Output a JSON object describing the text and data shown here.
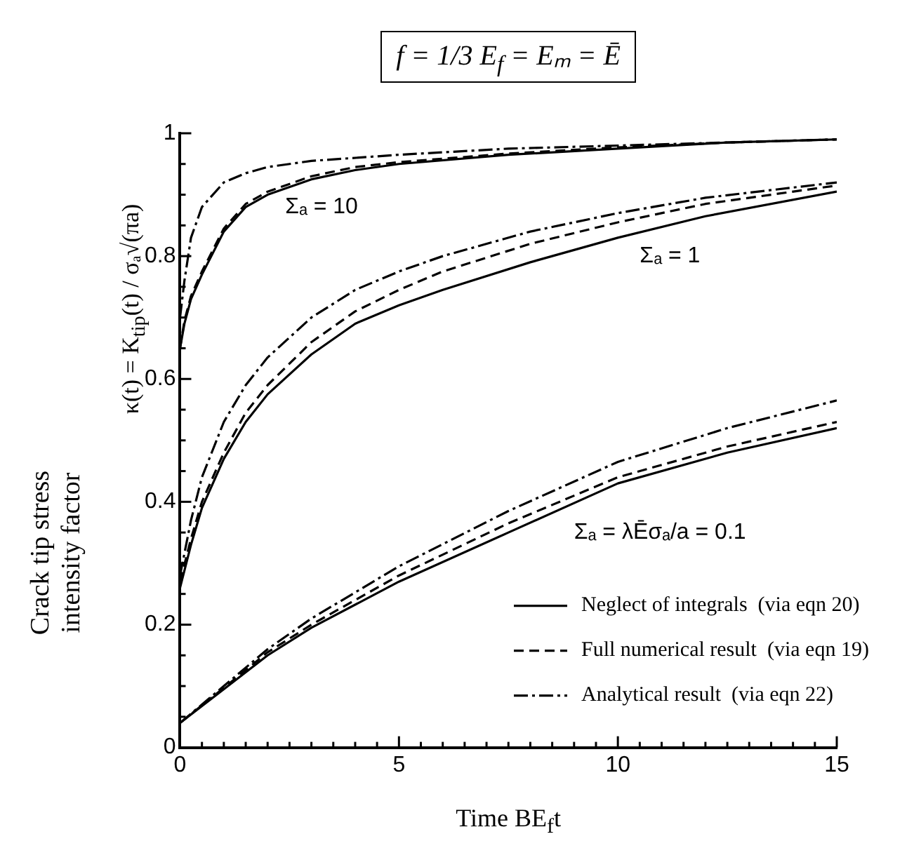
{
  "chart_data": {
    "type": "line",
    "title": "f = 1/3 E$_{f}$ = Eₘ = Ē",
    "xlabel": "Time BE$_{f}$t",
    "ylabel": "Crack tip stress\nintensity factor",
    "annotations": [
      "κ(t) = K$_{tip}$(t) / σₐ√(πa)",
      "Σₐ = 10",
      "Σₐ = 1",
      "Σₐ = λĒσₐ/a = 0.1"
    ],
    "xlim": [
      0,
      15
    ],
    "ylim": [
      0,
      1
    ],
    "xticks": [
      0,
      {
        "value": 0.5,
        "label": null
      },
      {
        "value": 1,
        "label": null
      },
      {
        "value": 1.5,
        "label": null
      },
      {
        "value": 2,
        "label": null
      },
      {
        "value": 2.5,
        "label": null
      },
      {
        "value": 3,
        "label": null
      },
      {
        "value": 3.5,
        "label": null
      },
      {
        "value": 4,
        "label": null
      },
      {
        "value": 4.5,
        "label": null
      },
      5,
      {
        "value": 5.5,
        "label": null
      },
      {
        "value": 6,
        "label": null
      },
      {
        "value": 6.5,
        "label": null
      },
      {
        "value": 7,
        "label": null
      },
      {
        "value": 7.5,
        "label": null
      },
      {
        "value": 8,
        "label": null
      },
      {
        "value": 8.5,
        "label": null
      },
      {
        "value": 9,
        "label": null
      },
      {
        "value": 9.5,
        "label": null
      },
      10,
      {
        "value": 10.5,
        "label": null
      },
      {
        "value": 11,
        "label": null
      },
      {
        "value": 11.5,
        "label": null
      },
      {
        "value": 12,
        "label": null
      },
      {
        "value": 12.5,
        "label": null
      },
      {
        "value": 13,
        "label": null
      },
      {
        "value": 13.5,
        "label": null
      },
      {
        "value": 14,
        "label": null
      },
      {
        "value": 14.5,
        "label": null
      },
      15
    ],
    "yticks": [
      0,
      {
        "value": 0.05,
        "label": null
      },
      {
        "value": 0.1,
        "label": null
      },
      {
        "value": 0.15,
        "label": null
      },
      0.2,
      {
        "value": 0.25,
        "label": null
      },
      {
        "value": 0.3,
        "label": null
      },
      {
        "value": 0.35,
        "label": null
      },
      0.4,
      {
        "value": 0.45,
        "label": null
      },
      {
        "value": 0.5,
        "label": null
      },
      {
        "value": 0.55,
        "label": null
      },
      0.6,
      {
        "value": 0.65,
        "label": null
      },
      {
        "value": 0.7,
        "label": null
      },
      {
        "value": 0.75,
        "label": null
      },
      0.8,
      {
        "value": 0.85,
        "label": null
      },
      {
        "value": 0.9,
        "label": null
      },
      {
        "value": 0.95,
        "label": null
      },
      1
    ],
    "legend": "bottom right",
    "marker": "none",
    "series": [
      {
        "name": "Neglect of integrals  (via eqn 20)",
        "color": "#000000",
        "line_style": "solid",
        "x": [
          0,
          0.1,
          0.25,
          0.5,
          1,
          1.5,
          2,
          3,
          4,
          5,
          7.5,
          10,
          12.5,
          15
        ],
        "values": [
          0.65,
          0.69,
          0.73,
          0.77,
          0.84,
          0.88,
          0.9,
          0.925,
          0.94,
          0.95,
          0.965,
          0.975,
          0.985,
          0.99
        ]
      },
      {
        "name": "Full numerical result  (via eqn 19)",
        "color": "#000000",
        "line_style": "dashed",
        "x": [
          0,
          0.1,
          0.25,
          0.5,
          1,
          1.5,
          2,
          3,
          4,
          5,
          7.5,
          10,
          12.5,
          15
        ],
        "values": [
          0.65,
          0.695,
          0.735,
          0.775,
          0.845,
          0.885,
          0.905,
          0.93,
          0.945,
          0.953,
          0.967,
          0.977,
          0.985,
          0.99
        ]
      },
      {
        "name": "Analytical result  (via eqn 22)",
        "color": "#000000",
        "line_style": "dashdot",
        "x": [
          0,
          0.1,
          0.25,
          0.5,
          1,
          1.5,
          2,
          3,
          5,
          7.5,
          10,
          12.5,
          15
        ],
        "values": [
          0.7,
          0.76,
          0.83,
          0.88,
          0.92,
          0.935,
          0.945,
          0.955,
          0.965,
          0.975,
          0.98,
          0.985,
          0.99
        ]
      },
      {
        "color": "#000000",
        "line_style": "solid",
        "x": [
          0,
          0.25,
          0.5,
          1,
          1.5,
          2,
          3,
          4,
          5,
          6,
          8,
          10,
          12,
          15
        ],
        "values": [
          0.26,
          0.33,
          0.39,
          0.47,
          0.53,
          0.575,
          0.64,
          0.69,
          0.72,
          0.745,
          0.79,
          0.83,
          0.865,
          0.905
        ]
      },
      {
        "color": "#000000",
        "line_style": "dashed",
        "x": [
          0,
          0.25,
          0.5,
          1,
          1.5,
          2,
          3,
          4,
          5,
          6,
          8,
          10,
          12,
          15
        ],
        "values": [
          0.27,
          0.34,
          0.4,
          0.48,
          0.545,
          0.59,
          0.66,
          0.71,
          0.745,
          0.775,
          0.82,
          0.855,
          0.885,
          0.915
        ]
      },
      {
        "color": "#000000",
        "line_style": "dashdot",
        "x": [
          0,
          0.25,
          0.5,
          1,
          1.5,
          2,
          3,
          4,
          5,
          6,
          8,
          10,
          12,
          15
        ],
        "values": [
          0.28,
          0.37,
          0.44,
          0.53,
          0.59,
          0.635,
          0.7,
          0.745,
          0.775,
          0.8,
          0.84,
          0.87,
          0.895,
          0.92
        ]
      },
      {
        "color": "#000000",
        "line_style": "solid",
        "x": [
          0,
          1,
          2,
          3,
          5,
          7.5,
          10,
          12.5,
          15
        ],
        "values": [
          0.04,
          0.095,
          0.15,
          0.195,
          0.27,
          0.35,
          0.43,
          0.48,
          0.52
        ]
      },
      {
        "color": "#000000",
        "line_style": "dashed",
        "x": [
          0,
          1,
          2,
          3,
          5,
          7.5,
          10,
          12.5,
          15
        ],
        "values": [
          0.04,
          0.097,
          0.155,
          0.2,
          0.28,
          0.365,
          0.44,
          0.49,
          0.53
        ]
      },
      {
        "color": "#000000",
        "line_style": "dashdot",
        "x": [
          0,
          1,
          2,
          3,
          5,
          7.5,
          10,
          12.5,
          15
        ],
        "values": [
          0.04,
          0.1,
          0.16,
          0.21,
          0.295,
          0.385,
          0.465,
          0.52,
          0.565
        ]
      }
    ]
  }
}
